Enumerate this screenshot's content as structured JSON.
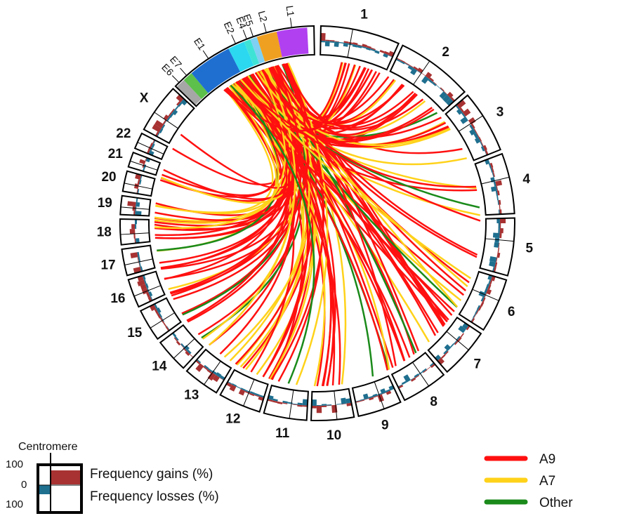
{
  "chromosomes": [
    "1",
    "2",
    "3",
    "4",
    "5",
    "6",
    "7",
    "8",
    "9",
    "10",
    "11",
    "12",
    "13",
    "14",
    "15",
    "16",
    "17",
    "18",
    "19",
    "20",
    "21",
    "22",
    "X"
  ],
  "viral_genes": [
    {
      "label": "E6",
      "color": "#a6a6a6"
    },
    {
      "label": "E7",
      "color": "#5cc04a"
    },
    {
      "label": "E1",
      "color": "#1f6fd1"
    },
    {
      "label": "E2",
      "color": "#2bd8f0"
    },
    {
      "label": "E4",
      "color": "#3fe3d6"
    },
    {
      "label": "E5",
      "color": "#7fd0f2"
    },
    {
      "label": "L2",
      "color": "#f0a020"
    },
    {
      "label": "L1",
      "color": "#b040f0"
    }
  ],
  "key": {
    "centromere": "Centromere",
    "scale": [
      "100",
      "0",
      "100"
    ],
    "gains": "Frequency gains (%)",
    "losses": "Frequency losses (%)",
    "gain_color": "#a83232",
    "loss_color": "#1f6f8f"
  },
  "legend": [
    {
      "name": "A9",
      "color": "#ff1010"
    },
    {
      "name": "A7",
      "color": "#ffd21a"
    },
    {
      "name": "Other",
      "color": "#1a8a1a"
    }
  ]
}
